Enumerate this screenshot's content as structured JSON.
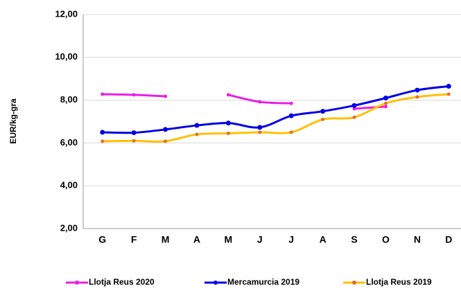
{
  "chart_data": {
    "type": "line",
    "y_label": "EUR/kg-gra",
    "categories": [
      "G",
      "F",
      "M",
      "A",
      "M",
      "J",
      "J",
      "A",
      "S",
      "O",
      "N",
      "D"
    ],
    "series": [
      {
        "name": "Llotja Reus 2020",
        "color": "#e81ee8",
        "values": [
          8.28,
          8.25,
          8.18,
          null,
          8.25,
          7.92,
          7.85,
          null,
          7.6,
          7.7,
          null,
          null
        ]
      },
      {
        "name": "Mercamurcia 2019",
        "color": "#0000e6",
        "values": [
          6.5,
          6.48,
          6.63,
          6.82,
          6.93,
          6.73,
          7.27,
          7.48,
          7.75,
          8.1,
          8.47,
          8.65
        ]
      },
      {
        "name": "Llotja Reus 2019",
        "color": "#ffc000",
        "marker_color": "#e0702a",
        "values": [
          6.08,
          6.1,
          6.08,
          6.4,
          6.45,
          6.5,
          6.5,
          7.1,
          7.2,
          7.85,
          8.15,
          8.28
        ]
      }
    ],
    "ylim": [
      2,
      12
    ],
    "yticks": [
      {
        "value": 2,
        "label": "2,00"
      },
      {
        "value": 4,
        "label": "4,00"
      },
      {
        "value": 6,
        "label": "6,00"
      },
      {
        "value": 8,
        "label": "8,00"
      },
      {
        "value": 10,
        "label": "10,00"
      },
      {
        "value": 12,
        "label": "12,00"
      }
    ],
    "grid": true
  }
}
